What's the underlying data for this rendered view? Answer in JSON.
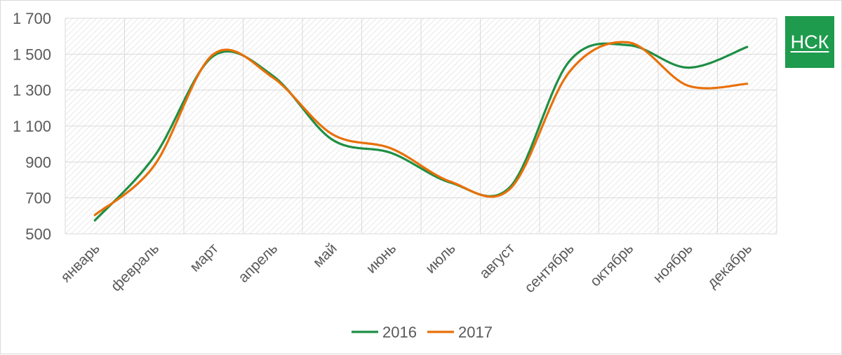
{
  "logo": {
    "text": "НСК",
    "color": "#1e9b4d"
  },
  "chart_data": {
    "type": "line",
    "categories": [
      "январь",
      "февраль",
      "март",
      "апрель",
      "май",
      "июнь",
      "июль",
      "август",
      "сентябрь",
      "октябрь",
      "ноябрь",
      "декабрь"
    ],
    "series": [
      {
        "name": "2016",
        "color": "#1e8f45",
        "values": [
          575,
          930,
          1490,
          1380,
          1025,
          950,
          785,
          760,
          1460,
          1550,
          1425,
          1540
        ]
      },
      {
        "name": "2017",
        "color": "#e8700a",
        "values": [
          605,
          880,
          1500,
          1370,
          1055,
          975,
          790,
          750,
          1400,
          1565,
          1325,
          1335
        ]
      }
    ],
    "y_ticks": [
      "500",
      "700",
      "900",
      "1 100",
      "1 300",
      "1 500",
      "1 700"
    ],
    "ylim": [
      500,
      1700
    ],
    "title": "",
    "xlabel": "",
    "ylabel": "",
    "legend_position": "bottom",
    "grid": true
  }
}
